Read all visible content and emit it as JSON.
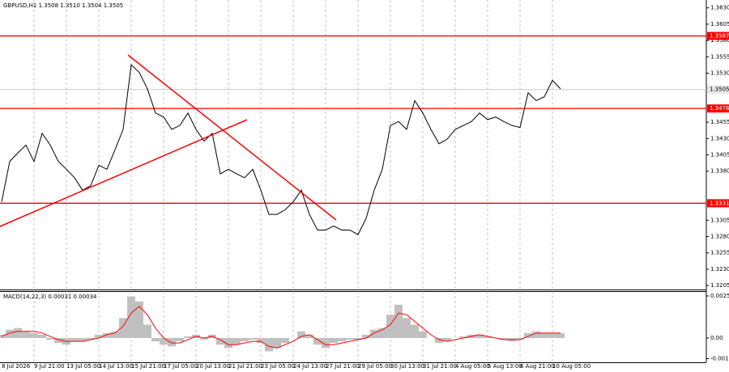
{
  "chart_data": [
    {
      "type": "line",
      "title": "GBPUSD,H1 1.3508 1.3510 1.3504 1.3505",
      "categories": [
        "8 Jul 2026",
        null,
        null,
        null,
        "9 Jul 21:00",
        null,
        null,
        null,
        "13 Jul 05:00",
        null,
        null,
        null,
        "14 Jul 13:00",
        null,
        null,
        null,
        "15 Jul 21:00",
        null,
        null,
        null,
        "17 Jul 05:00",
        null,
        null,
        null,
        "20 Jul 13:00",
        null,
        null,
        null,
        "21 Jul 21:00",
        null,
        null,
        null,
        "23 Jul 05:00",
        null,
        null,
        null,
        "24 Jul 13:00",
        null,
        null,
        null,
        "27 Jul 21:00",
        null,
        null,
        null,
        "29 Jul 05:00",
        null,
        null,
        null,
        "30 Jul 13:00",
        null,
        null,
        null,
        "31 Jul 21:00",
        null,
        null,
        null,
        "4 Aug 05:00",
        null,
        null,
        null,
        "5 Aug 13:00",
        null,
        null,
        null,
        "6 Aug 21:00",
        null,
        null,
        null,
        "10 Aug 05:00",
        null
      ],
      "values": [
        1.3333,
        1.3395,
        1.3408,
        1.342,
        1.3395,
        1.3438,
        1.342,
        1.3395,
        1.3383,
        1.337,
        1.3351,
        1.3358,
        1.3389,
        1.3383,
        1.3413,
        1.3444,
        1.3543,
        1.3531,
        1.3506,
        1.3469,
        1.3463,
        1.3444,
        1.345,
        1.3469,
        1.3444,
        1.3426,
        1.3438,
        1.3376,
        1.3383,
        1.3376,
        1.337,
        1.3383,
        1.3351,
        1.3314,
        1.3314,
        1.3321,
        1.3333,
        1.3351,
        1.3314,
        1.329,
        1.329,
        1.3296,
        1.329,
        1.329,
        1.3283,
        1.3308,
        1.3351,
        1.3383,
        1.345,
        1.3456,
        1.3444,
        1.3488,
        1.3469,
        1.3444,
        1.3422,
        1.3429,
        1.3444,
        1.345,
        1.3456,
        1.3469,
        1.3459,
        1.3463,
        1.3456,
        1.345,
        1.3447,
        1.35,
        1.3488,
        1.3494,
        1.3519,
        1.3506
      ],
      "color": "#000000",
      "ylim": [
        1.3199,
        1.3642
      ],
      "yticks": [
        {
          "value": 1.363,
          "label": "1.3630"
        },
        1.3605,
        {
          "value": 1.358,
          "label": "1.3580"
        },
        1.3555,
        {
          "value": 1.353,
          "label": "1.3530"
        },
        1.3455,
        {
          "value": 1.343,
          "label": "1.3430"
        },
        1.3405,
        {
          "value": 1.338,
          "label": "1.3380"
        },
        1.3305,
        {
          "value": 1.328,
          "label": "1.3280"
        },
        1.3255,
        {
          "value": 1.323,
          "label": "1.3230"
        },
        1.3205
      ],
      "levels": [
        1.3587,
        1.3476,
        1.3331
      ],
      "level_color": "#ff0000",
      "current_price": 1.3505
    },
    {
      "type": "bar",
      "title": "MACD(14,22,3) 0.00031 0.00034",
      "values": [
        0.0002,
        0.0005,
        0.0006,
        0.0004,
        0.0003,
        0.0002,
        -0.0001,
        -0.0003,
        -0.0004,
        -0.0002,
        -0.0002,
        -0.0001,
        0.0002,
        0.0003,
        0.0004,
        0.0012,
        0.0025,
        0.0022,
        0.0008,
        -0.0002,
        -0.0004,
        -0.0005,
        -0.0002,
        0.0001,
        0.0002,
        -0.0001,
        0.0002,
        -0.0004,
        -0.0006,
        -0.0004,
        -0.0002,
        -0.0001,
        -0.0003,
        -0.0008,
        -0.0006,
        -0.0003,
        0,
        0.0004,
        0.0002,
        -0.0004,
        -0.0006,
        -0.0003,
        -0.0002,
        -0.0001,
        -0.0001,
        0.0002,
        0.0005,
        0.0006,
        0.0014,
        0.002,
        0.0012,
        0.0008,
        0.0004,
        0,
        -0.0003,
        -0.0002,
        0,
        0.0001,
        0.0002,
        0.0002,
        0.0001,
        0,
        -0.0001,
        -0.0002,
        -0.0001,
        0.0003,
        0.0004,
        0.0003,
        0.0003,
        0.0003
      ],
      "color": "#c0c0c0",
      "signal": {
        "color": "#ff0000",
        "values": [
          0.0001,
          0.0003,
          0.0004,
          0.0004,
          0.0004,
          0.0003,
          0.0001,
          -0.0001,
          -0.0002,
          -0.0002,
          -0.0002,
          -0.0001,
          0,
          0.0002,
          0.0003,
          0.0007,
          0.0015,
          0.0019,
          0.0014,
          0.0006,
          0,
          -0.0003,
          -0.0003,
          -0.0001,
          0.0001,
          0,
          0.0001,
          -0.0001,
          -0.0004,
          -0.0004,
          -0.0003,
          -0.0002,
          -0.0002,
          -0.0005,
          -0.0006,
          -0.0004,
          -0.0002,
          0.0001,
          0.0002,
          -0.0001,
          -0.0004,
          -0.0004,
          -0.0003,
          -0.0002,
          -0.0001,
          0,
          0.0003,
          0.0005,
          0.0008,
          0.0015,
          0.0014,
          0.001,
          0.0006,
          0.0002,
          -0.0001,
          -0.0002,
          -0.0001,
          0,
          0.0001,
          0.0002,
          0.0001,
          0,
          -0.0001,
          -0.0001,
          -0.0001,
          0.0001,
          0.0003,
          0.0003,
          0.0003,
          0.0003
        ]
      },
      "ylim": [
        -0.00146,
        0.00282
      ],
      "yticks": [
        0.00253,
        {
          "value": 0,
          "label": "0.00"
        },
        -0.00124
      ]
    }
  ]
}
